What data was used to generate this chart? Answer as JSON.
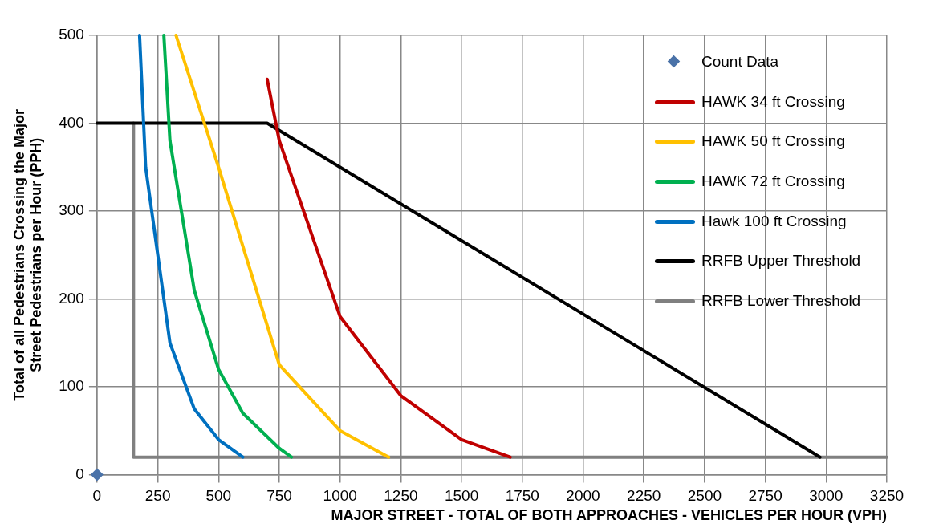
{
  "chart_data": {
    "type": "line",
    "xlabel": "MAJOR STREET - TOTAL OF BOTH APPROACHES - VEHICLES PER HOUR (VPH)",
    "ylabel": "Total of all Pedestrians Crossing the Major Street Pedestrians per Hour (PPH)",
    "xlim": [
      0,
      3250
    ],
    "xticks": [
      0,
      250,
      500,
      750,
      1000,
      1250,
      1500,
      1750,
      2000,
      2250,
      2500,
      2750,
      3000,
      3250
    ],
    "ylim": [
      0,
      500
    ],
    "yticks": [
      0,
      100,
      200,
      300,
      400,
      500
    ],
    "grid": true,
    "legend": "top right",
    "marker": "none",
    "line_style": "solid",
    "series": [
      {
        "name": "Count Data",
        "type": "scatter",
        "marker": "diamond",
        "color": "#4a72a8",
        "x": [
          0
        ],
        "values": [
          0
        ]
      },
      {
        "name": "HAWK 34 ft Crossing",
        "color": "#c00000",
        "x": [
          700,
          750,
          1000,
          1250,
          1500,
          1700
        ],
        "values": [
          450,
          380,
          180,
          90,
          40,
          20
        ]
      },
      {
        "name": "HAWK 50 ft Crossing",
        "color": "#ffc000",
        "x": [
          325,
          500,
          750,
          1000,
          1200
        ],
        "values": [
          500,
          350,
          125,
          50,
          20
        ]
      },
      {
        "name": "HAWK 72 ft Crossing",
        "color": "#00b050",
        "x": [
          275,
          300,
          400,
          500,
          600,
          750,
          800
        ],
        "values": [
          500,
          380,
          210,
          120,
          70,
          30,
          20
        ]
      },
      {
        "name": "Hawk 100 ft Crossing",
        "color": "#0070c0",
        "x": [
          175,
          200,
          300,
          400,
          500,
          600
        ],
        "values": [
          500,
          350,
          150,
          75,
          40,
          20
        ]
      },
      {
        "name": "RRFB Upper Threshold",
        "color": "#000000",
        "x": [
          0,
          700,
          2975
        ],
        "values": [
          400,
          400,
          20
        ]
      },
      {
        "name": "RRFB Lower Threshold",
        "color": "#808080",
        "x": [
          150,
          150,
          3250
        ],
        "values": [
          400,
          20,
          20
        ]
      }
    ]
  }
}
